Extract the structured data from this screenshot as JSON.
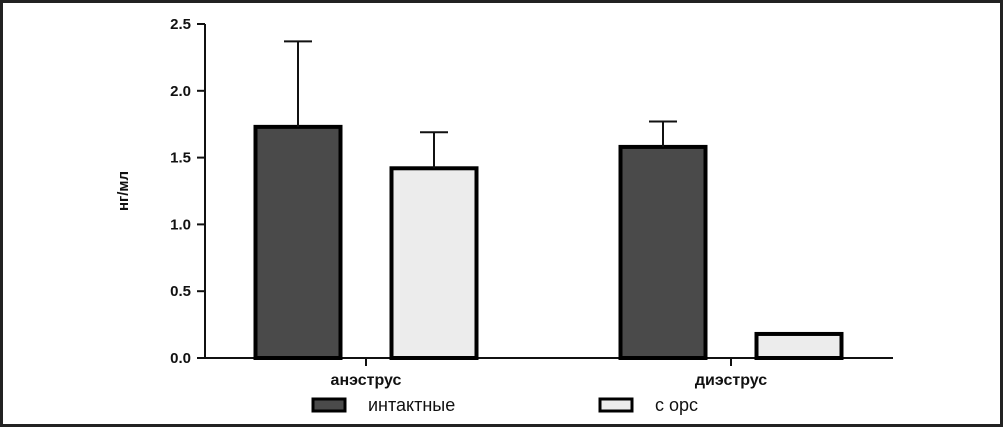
{
  "chart_data": {
    "type": "bar",
    "categories": [
      "анэструс",
      "диэструс"
    ],
    "series": [
      {
        "name": "интактные",
        "values": [
          1.73,
          1.58
        ],
        "errors": [
          0.64,
          0.19
        ],
        "color": "#4a4a4a"
      },
      {
        "name": "с орс",
        "values": [
          1.42,
          0.18
        ],
        "errors": [
          0.27,
          0.0
        ],
        "color": "#ececec"
      }
    ],
    "ylabel": "нг/мл",
    "ylim": [
      0,
      2.5
    ],
    "yticks": [
      "0.0",
      "0.5",
      "1.0",
      "1.5",
      "2.0",
      "2.5"
    ],
    "ytick_values": [
      0,
      0.5,
      1.0,
      1.5,
      2.0,
      2.5
    ],
    "legend_position": "bottom",
    "grid": false
  }
}
